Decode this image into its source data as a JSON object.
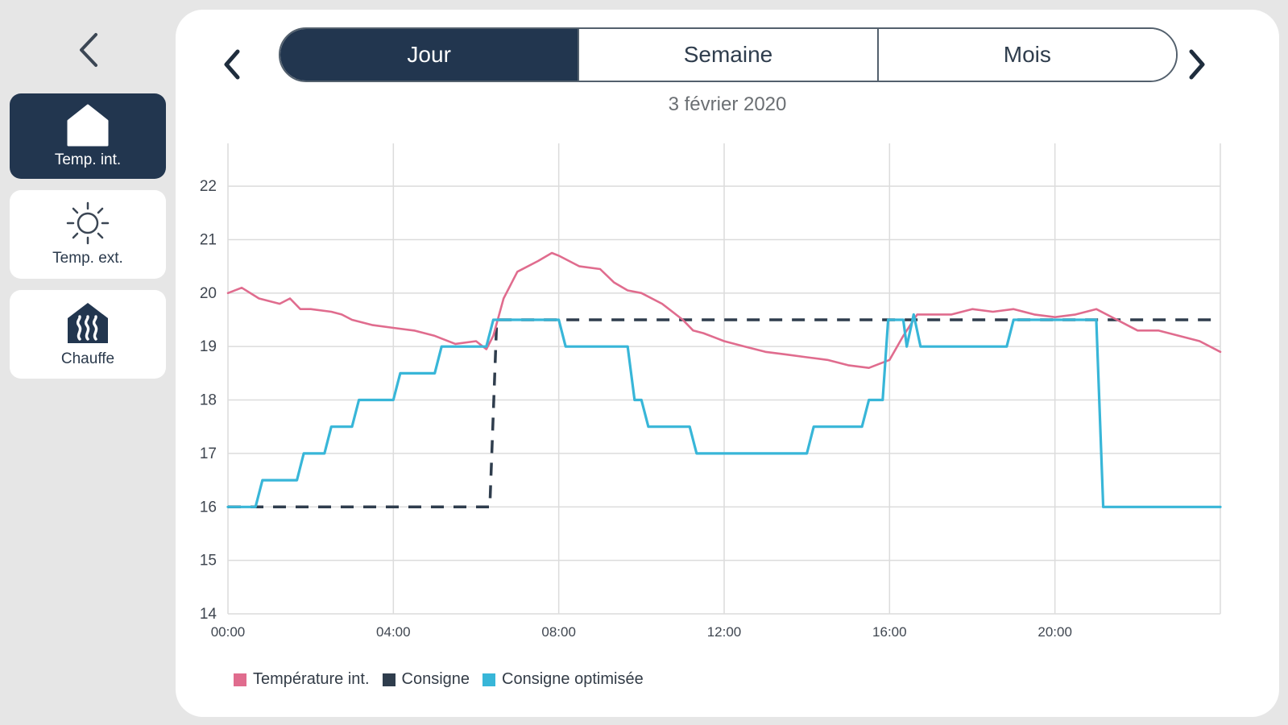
{
  "nav": {
    "back_icon": "chevron-left-icon"
  },
  "sidebar": {
    "items": [
      {
        "label": "Temp. int.",
        "icon": "house-icon",
        "active": true
      },
      {
        "label": "Temp. ext.",
        "icon": "sun-icon",
        "active": false
      },
      {
        "label": "Chauffe",
        "icon": "heating-icon",
        "active": false
      }
    ]
  },
  "period": {
    "tabs": [
      "Jour",
      "Semaine",
      "Mois"
    ],
    "selected": "Jour",
    "date": "3 février 2020"
  },
  "colors": {
    "accent": "#22364f",
    "temperature": "#e06c8e",
    "consigne": "#2f3d4d",
    "optimisee": "#38b6d8"
  },
  "chart_data": {
    "type": "line",
    "x_ticks": [
      "00:00",
      "04:00",
      "08:00",
      "12:00",
      "16:00",
      "20:00"
    ],
    "y_ticks": [
      "22",
      "21",
      "20",
      "19",
      "18",
      "17",
      "16",
      "15",
      "14"
    ],
    "xlim": [
      "00:00",
      "24:00"
    ],
    "ylim": [
      14,
      22.8
    ],
    "grid": true,
    "legend_position": "bottom-left",
    "series": [
      {
        "name": "Température int.",
        "style": "solid",
        "x": [
          "00:00",
          "00:20",
          "00:45",
          "01:15",
          "01:30",
          "01:45",
          "02:00",
          "02:30",
          "02:45",
          "03:00",
          "03:30",
          "04:00",
          "04:30",
          "05:00",
          "05:30",
          "06:00",
          "06:15",
          "06:25",
          "06:40",
          "07:00",
          "07:30",
          "07:50",
          "08:00",
          "08:15",
          "08:30",
          "09:00",
          "09:20",
          "09:40",
          "10:00",
          "10:30",
          "11:00",
          "11:15",
          "11:30",
          "12:00",
          "12:30",
          "13:00",
          "13:30",
          "14:00",
          "14:30",
          "15:00",
          "15:30",
          "16:00",
          "16:20",
          "16:40",
          "17:00",
          "17:30",
          "18:00",
          "18:30",
          "19:00",
          "19:30",
          "20:00",
          "20:30",
          "21:00",
          "21:30",
          "22:00",
          "22:30",
          "23:00",
          "23:30",
          "24:00"
        ],
        "y": [
          20.0,
          20.1,
          19.9,
          19.8,
          19.9,
          19.7,
          19.7,
          19.65,
          19.6,
          19.5,
          19.4,
          19.35,
          19.3,
          19.2,
          19.05,
          19.1,
          18.95,
          19.2,
          19.9,
          20.4,
          20.6,
          20.75,
          20.7,
          20.6,
          20.5,
          20.45,
          20.2,
          20.05,
          20.0,
          19.8,
          19.5,
          19.3,
          19.25,
          19.1,
          19.0,
          18.9,
          18.85,
          18.8,
          18.75,
          18.65,
          18.6,
          18.75,
          19.2,
          19.6,
          19.6,
          19.6,
          19.7,
          19.65,
          19.7,
          19.6,
          19.55,
          19.6,
          19.7,
          19.5,
          19.3,
          19.3,
          19.2,
          19.1,
          18.9
        ]
      },
      {
        "name": "Consigne",
        "style": "dashed",
        "x": [
          "00:00",
          "06:20",
          "06:30",
          "24:00"
        ],
        "y": [
          16.0,
          16.0,
          19.5,
          19.5
        ]
      },
      {
        "name": "Consigne optimisée",
        "style": "solid",
        "x": [
          "00:00",
          "00:40",
          "00:50",
          "01:40",
          "01:50",
          "02:20",
          "02:30",
          "03:00",
          "03:10",
          "03:40",
          "03:50",
          "04:00",
          "04:10",
          "04:30",
          "04:40",
          "05:00",
          "05:10",
          "05:40",
          "05:50",
          "06:15",
          "06:25",
          "08:00",
          "08:10",
          "09:40",
          "09:50",
          "10:00",
          "10:10",
          "10:30",
          "10:40",
          "11:10",
          "11:20",
          "14:00",
          "14:10",
          "14:40",
          "14:50",
          "15:20",
          "15:30",
          "15:50",
          "15:58",
          "16:20",
          "16:25",
          "16:35",
          "16:45",
          "17:00",
          "17:10",
          "18:50",
          "19:00",
          "20:50",
          "21:00",
          "21:10",
          "24:00"
        ],
        "y": [
          16.0,
          16.0,
          16.5,
          16.5,
          17.0,
          17.0,
          17.5,
          17.5,
          18.0,
          18.0,
          18.0,
          18.0,
          18.5,
          18.5,
          18.5,
          18.5,
          19.0,
          19.0,
          19.0,
          19.0,
          19.5,
          19.5,
          19.0,
          19.0,
          18.0,
          18.0,
          17.5,
          17.5,
          17.5,
          17.5,
          17.0,
          17.0,
          17.5,
          17.5,
          17.5,
          17.5,
          18.0,
          18.0,
          19.5,
          19.5,
          19.0,
          19.6,
          19.0,
          19.0,
          19.0,
          19.0,
          19.5,
          19.5,
          19.5,
          16.0,
          16.0
        ]
      }
    ]
  }
}
